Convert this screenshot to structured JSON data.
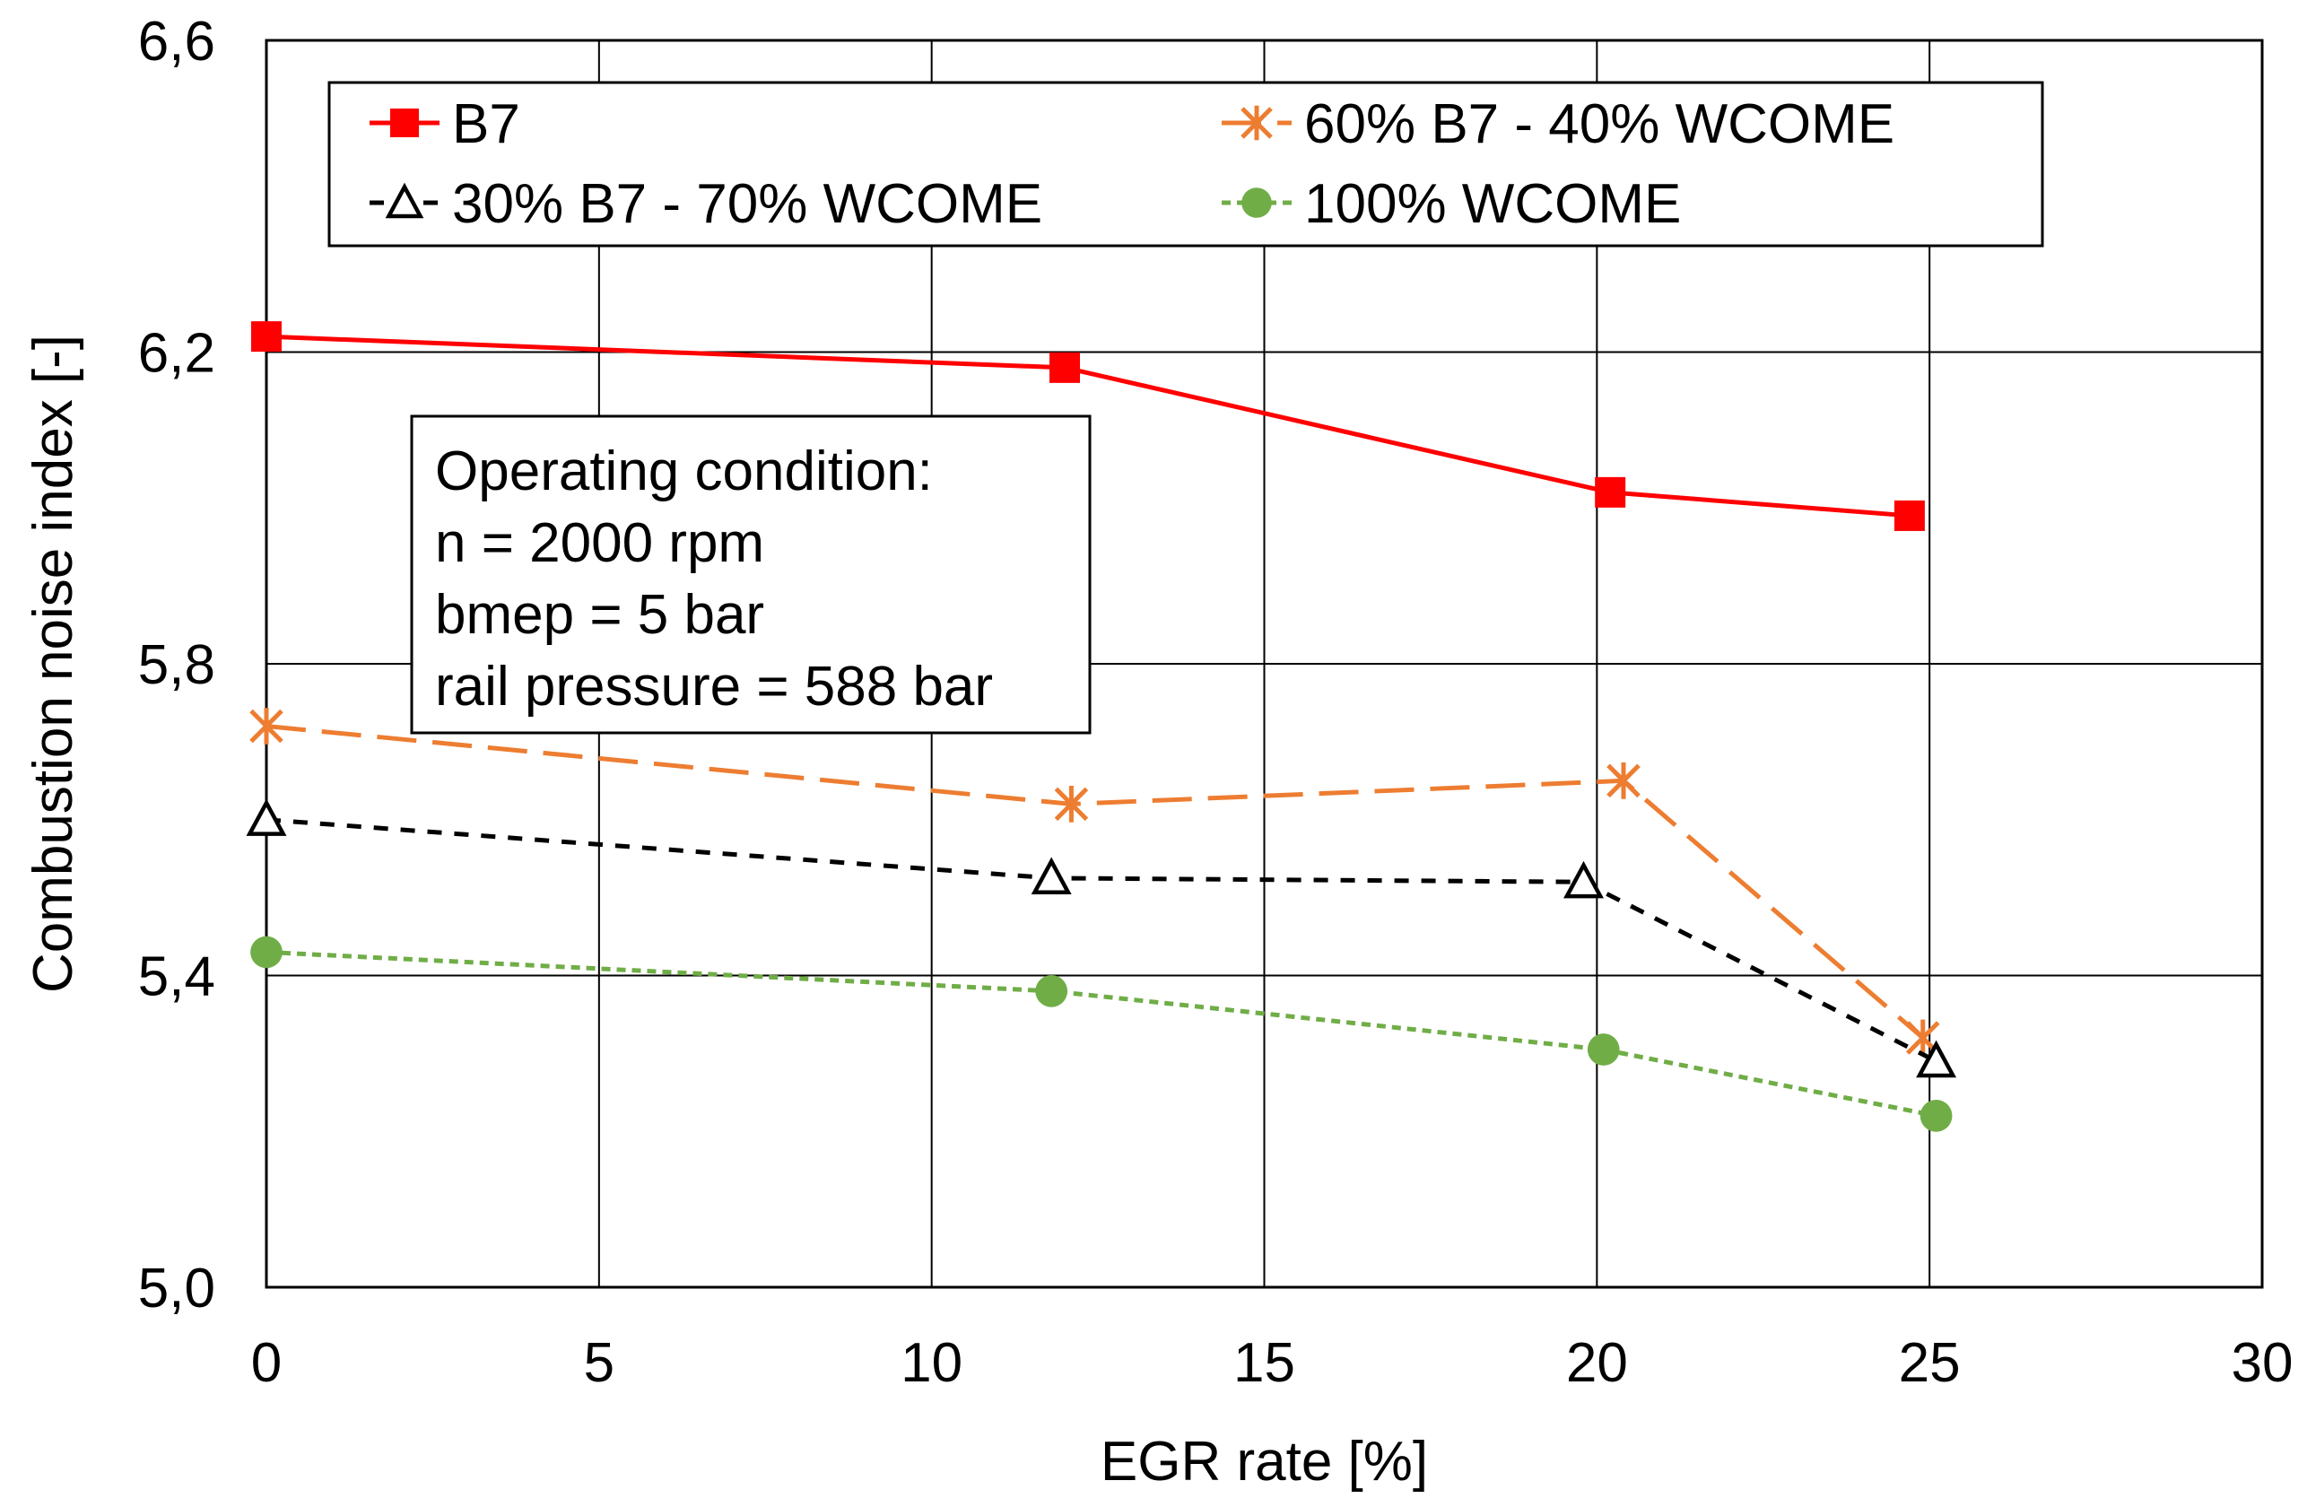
{
  "chart_data": {
    "type": "line",
    "xlabel": "EGR rate [%]",
    "ylabel": "Combustion noise index [-]",
    "xlim": [
      0,
      30
    ],
    "ylim": [
      5.0,
      6.6
    ],
    "x_ticks": [
      0,
      5,
      10,
      15,
      20,
      25,
      30
    ],
    "y_ticks": [
      5.0,
      5.4,
      5.8,
      6.2,
      6.6
    ],
    "x_tick_labels": [
      "0",
      "5",
      "10",
      "15",
      "20",
      "25",
      "30"
    ],
    "y_tick_labels": [
      "5,0",
      "5,4",
      "5,8",
      "6,2",
      "6,6"
    ],
    "grid": true,
    "legend_position": "top",
    "series": [
      {
        "name": "B7",
        "color": "#ff0000",
        "dash": "solid",
        "marker": "square",
        "x": [
          0,
          12,
          20.2,
          24.7
        ],
        "y": [
          6.22,
          6.18,
          6.02,
          5.99
        ]
      },
      {
        "name": "60% B7 - 40% WCOME",
        "color": "#ed7d31",
        "dash": "long-dash",
        "marker": "asterisk",
        "x": [
          0,
          12.1,
          20.4,
          24.9
        ],
        "y": [
          5.72,
          5.62,
          5.65,
          5.32
        ]
      },
      {
        "name": "30% B7 - 70% WCOME",
        "color": "#000000",
        "dash": "short-dash",
        "marker": "open-triangle",
        "x": [
          0,
          11.8,
          19.8,
          25.1
        ],
        "y": [
          5.6,
          5.525,
          5.52,
          5.29
        ]
      },
      {
        "name": "100% WCOME",
        "color": "#70ad47",
        "dash": "dotted",
        "marker": "circle",
        "x": [
          0,
          11.8,
          20.1,
          25.1
        ],
        "y": [
          5.43,
          5.38,
          5.305,
          5.22
        ]
      }
    ],
    "annotation": {
      "lines": [
        "Operating condition:",
        "n = 2000 rpm",
        "bmep = 5 bar",
        "rail pressure = 588 bar"
      ]
    }
  }
}
